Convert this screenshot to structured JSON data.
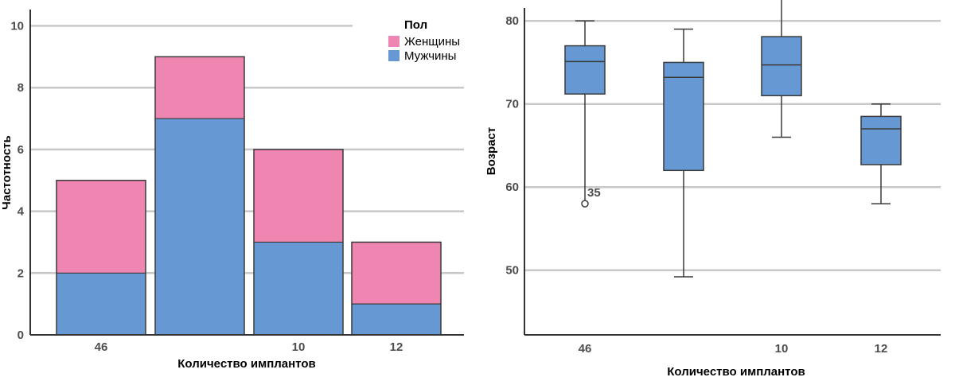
{
  "colors": {
    "female": "#ef86b1",
    "male": "#6699d3",
    "grid": "#c8c8c8",
    "axis": "#333333",
    "outline": "#3a3a3a"
  },
  "chart_data": [
    {
      "type": "bar",
      "stacked": true,
      "categories": [
        "46",
        "",
        "10",
        "12"
      ],
      "series": [
        {
          "name": "Мужчины",
          "values": [
            2,
            7,
            3,
            1
          ]
        },
        {
          "name": "Женщины",
          "values": [
            3,
            2,
            3,
            2
          ]
        }
      ],
      "xlabel": "Количество имплантов",
      "ylabel": "Частотность",
      "ylim": [
        0,
        10.3
      ],
      "yticks": [
        "0",
        "2",
        "4",
        "6",
        "8",
        "10"
      ],
      "legend": {
        "title": "Пол",
        "position": "top-right",
        "items": [
          "Женщины",
          "Мужчины"
        ]
      },
      "grid": true
    },
    {
      "type": "box",
      "categories": [
        "46",
        "",
        "10",
        "12"
      ],
      "boxes": [
        {
          "min": 58,
          "q1": 71.2,
          "median": 75.1,
          "q3": 77,
          "max": 80
        },
        {
          "min": 49.2,
          "q1": 62,
          "median": 73.2,
          "q3": 75,
          "max": 79
        },
        {
          "min": 66,
          "q1": 71,
          "median": 74.7,
          "q3": 78.1,
          "max": 84
        },
        {
          "min": 58,
          "q1": 62.7,
          "median": 67,
          "q3": 68.5,
          "max": 70
        }
      ],
      "outliers": [
        {
          "category_index": 0,
          "value": 58,
          "label": "35"
        }
      ],
      "xlabel": "Количество имплантов",
      "ylabel": "Возраст",
      "ylim": [
        43,
        81.5
      ],
      "yticks": [
        "50",
        "60",
        "70",
        "80"
      ],
      "grid": true
    }
  ]
}
